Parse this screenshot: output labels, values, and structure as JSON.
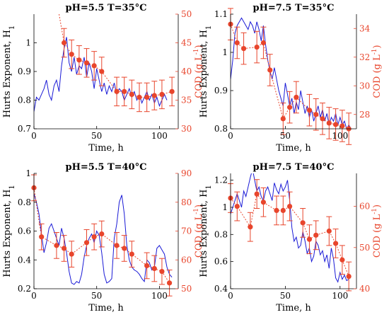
{
  "colors": {
    "hurst": "#1a1ad6",
    "cod": "#e8452c",
    "axis": "#000000"
  },
  "chart_data": [
    {
      "type": "line",
      "title": "pH=5.5 T=35°C",
      "xlabel": "Time, h",
      "ylabel": "Hurts Exponent, H",
      "ylabel_sub": "1",
      "y2label": "COD (g L",
      "y2label_sup": "-1",
      "y2label_end": ")",
      "xlim": [
        0,
        115
      ],
      "xticks": [
        "0",
        "50",
        "100"
      ],
      "xtick_vals": [
        0,
        50,
        100
      ],
      "ylim": [
        0.7,
        1.1
      ],
      "yticks": [
        "0.7",
        "0.8",
        "0.9",
        "1"
      ],
      "ytick_vals": [
        0.7,
        0.8,
        0.9,
        1.0
      ],
      "y2lim": [
        30,
        50
      ],
      "y2ticks": [
        "30",
        "35",
        "40",
        "45",
        "50"
      ],
      "y2tick_vals": [
        30,
        35,
        40,
        45,
        50
      ],
      "series": [
        {
          "axis": "left",
          "style": "line",
          "x": [
            0,
            2,
            4,
            6,
            8,
            10,
            12,
            14,
            16,
            18,
            20,
            22,
            24,
            26,
            28,
            30,
            32,
            34,
            36,
            38,
            40,
            42,
            44,
            46,
            48,
            50,
            52,
            54,
            56,
            58,
            60,
            62,
            64,
            66,
            68,
            70,
            72,
            74,
            76,
            78,
            80,
            82,
            84,
            86,
            88,
            90,
            92,
            94,
            96,
            98,
            100,
            102,
            104,
            106
          ],
          "y": [
            0.76,
            0.81,
            0.8,
            0.82,
            0.84,
            0.87,
            0.82,
            0.8,
            0.85,
            0.87,
            0.83,
            0.92,
            0.98,
            1.02,
            0.93,
            0.9,
            0.95,
            0.89,
            0.92,
            0.91,
            0.95,
            0.88,
            0.93,
            0.9,
            0.84,
            0.91,
            0.87,
            0.83,
            0.86,
            0.82,
            0.85,
            0.83,
            0.86,
            0.82,
            0.84,
            0.83,
            0.8,
            0.82,
            0.84,
            0.81,
            0.83,
            0.8,
            0.82,
            0.79,
            0.81,
            0.83,
            0.8,
            0.82,
            0.79,
            0.81,
            0.78,
            0.8,
            0.82,
            0.8
          ]
        },
        {
          "axis": "right",
          "style": "points",
          "x": [
            24,
            30,
            36,
            42,
            48,
            54,
            66,
            72,
            78,
            84,
            90,
            96,
            102,
            110
          ],
          "y": [
            45,
            43,
            42,
            41.5,
            41,
            40,
            36.5,
            36.5,
            36,
            35.5,
            35.5,
            35.8,
            36,
            36.5
          ],
          "err": [
            2.5,
            2.5,
            2.5,
            2.5,
            2.5,
            2.5,
            2.5,
            2.5,
            2.5,
            2.5,
            2.5,
            2.5,
            2.5,
            2.5
          ],
          "lead_x": [
            20,
            24
          ],
          "lead_y": [
            50,
            45
          ]
        }
      ]
    },
    {
      "type": "line",
      "title": "pH=7.5 T=35°C",
      "xlabel": "Time, h",
      "ylabel": "Hurts Exponent, H",
      "ylabel_sub": "1",
      "y2label": "COD (g L",
      "y2label_sup": "-1",
      "y2label_end": ")",
      "xlim": [
        0,
        115
      ],
      "xticks": [
        "0",
        "50",
        "100"
      ],
      "xtick_vals": [
        0,
        50,
        100
      ],
      "ylim": [
        0.8,
        1.1
      ],
      "yticks": [
        "0.8",
        "0.9",
        "1",
        "1.1"
      ],
      "ytick_vals": [
        0.8,
        0.9,
        1.0,
        1.1
      ],
      "y2lim": [
        27,
        35
      ],
      "y2ticks": [
        "28",
        "30",
        "32",
        "34"
      ],
      "y2tick_vals": [
        28,
        30,
        32,
        34
      ],
      "series": [
        {
          "axis": "left",
          "style": "line",
          "x": [
            0,
            2,
            4,
            6,
            8,
            10,
            12,
            14,
            16,
            18,
            20,
            22,
            24,
            26,
            28,
            30,
            32,
            34,
            36,
            38,
            40,
            42,
            44,
            46,
            48,
            50,
            52,
            54,
            56,
            58,
            60,
            62,
            64,
            66,
            68,
            70,
            72,
            74,
            76,
            78,
            80,
            82,
            84,
            86,
            88,
            90,
            92,
            94,
            96,
            98,
            100,
            102,
            104,
            106,
            108,
            110
          ],
          "y": [
            0.93,
            0.98,
            1.05,
            1.07,
            1.08,
            1.09,
            1.08,
            1.07,
            1.06,
            1.08,
            1.07,
            1.05,
            1.08,
            1.06,
            1.03,
            1.07,
            1.02,
            0.98,
            0.95,
            0.93,
            0.96,
            0.93,
            0.9,
            0.88,
            0.86,
            0.92,
            0.89,
            0.86,
            0.88,
            0.84,
            0.87,
            0.85,
            0.9,
            0.87,
            0.84,
            0.86,
            0.83,
            0.85,
            0.82,
            0.84,
            0.86,
            0.83,
            0.85,
            0.82,
            0.84,
            0.81,
            0.83,
            0.82,
            0.84,
            0.81,
            0.83,
            0.81,
            0.82,
            0.8,
            0.81,
            0.8
          ]
        },
        {
          "axis": "right",
          "style": "points",
          "x": [
            0,
            6,
            12,
            24,
            30,
            36,
            48,
            54,
            60,
            72,
            78,
            84,
            90,
            96,
            102,
            108
          ],
          "y": [
            34.3,
            33.0,
            32.6,
            32.7,
            33.0,
            31.1,
            27.7,
            28.5,
            29.2,
            28.3,
            28.0,
            27.7,
            27.4,
            27.3,
            27.2,
            27.0
          ],
          "err": [
            1.1,
            1.1,
            1.1,
            1.1,
            1.1,
            1.1,
            1.1,
            1.1,
            1.1,
            1.1,
            1.1,
            1.1,
            1.1,
            1.1,
            1.1,
            1.1
          ]
        }
      ]
    },
    {
      "type": "line",
      "title": "pH=5.5 T=40°C",
      "xlabel": "Time, h",
      "ylabel": "Hurts Exponent, H",
      "ylabel_sub": "1",
      "y2label": "COD (g L",
      "y2label_sup": "-1",
      "y2label_end": ")",
      "xlim": [
        0,
        115
      ],
      "xticks": [
        "0",
        "50",
        "100"
      ],
      "xtick_vals": [
        0,
        50,
        100
      ],
      "ylim": [
        0.2,
        1.0
      ],
      "yticks": [
        "0.2",
        "0.4",
        "0.6",
        "0.8",
        "1"
      ],
      "ytick_vals": [
        0.2,
        0.4,
        0.6,
        0.8,
        1.0
      ],
      "y2lim": [
        50,
        90
      ],
      "y2ticks": [
        "50",
        "60",
        "70",
        "80",
        "90"
      ],
      "y2tick_vals": [
        50,
        60,
        70,
        80,
        90
      ],
      "series": [
        {
          "axis": "left",
          "style": "line",
          "x": [
            0,
            2,
            4,
            6,
            8,
            10,
            12,
            14,
            16,
            18,
            20,
            22,
            24,
            26,
            28,
            30,
            32,
            34,
            36,
            38,
            40,
            42,
            44,
            46,
            48,
            50,
            52,
            54,
            56,
            58,
            60,
            62,
            64,
            66,
            68,
            70,
            72,
            74,
            76,
            78,
            80,
            82,
            84,
            86,
            88,
            90,
            92,
            94,
            96,
            98,
            100,
            102,
            104,
            106,
            108,
            110
          ],
          "y": [
            0.86,
            0.8,
            0.72,
            0.58,
            0.45,
            0.52,
            0.62,
            0.65,
            0.6,
            0.55,
            0.5,
            0.62,
            0.55,
            0.45,
            0.32,
            0.24,
            0.23,
            0.25,
            0.24,
            0.3,
            0.42,
            0.5,
            0.55,
            0.58,
            0.52,
            0.6,
            0.57,
            0.45,
            0.3,
            0.24,
            0.25,
            0.27,
            0.55,
            0.65,
            0.8,
            0.85,
            0.72,
            0.5,
            0.4,
            0.35,
            0.33,
            0.32,
            0.3,
            0.27,
            0.25,
            0.4,
            0.38,
            0.33,
            0.35,
            0.48,
            0.5,
            0.47,
            0.44,
            0.35,
            0.3,
            0.28
          ]
        },
        {
          "axis": "right",
          "style": "points",
          "x": [
            0,
            6,
            18,
            24,
            30,
            42,
            48,
            54,
            66,
            72,
            78,
            90,
            96,
            102,
            108
          ],
          "y": [
            85,
            68,
            65,
            64,
            62,
            66,
            68,
            69,
            65,
            64,
            62,
            58,
            57,
            56,
            52
          ],
          "err": [
            4.5,
            4.5,
            4.5,
            4.5,
            4.5,
            4.5,
            4.5,
            4.5,
            4.5,
            4.5,
            4.5,
            4.5,
            4.5,
            4.5,
            4.5
          ]
        }
      ]
    },
    {
      "type": "line",
      "title": "pH=7.5 T=40°C",
      "xlabel": "Time, h",
      "ylabel": "Hurts Exponent, H",
      "ylabel_sub": "1",
      "y2label": "COD (g L",
      "y2label_sup": "-1",
      "y2label_end": ")",
      "xlim": [
        0,
        115
      ],
      "xticks": [
        "0",
        "50",
        "100"
      ],
      "xtick_vals": [
        0,
        50,
        100
      ],
      "ylim": [
        0.4,
        1.25
      ],
      "yticks": [
        "0.4",
        "0.6",
        "0.8",
        "1",
        "1.2"
      ],
      "ytick_vals": [
        0.4,
        0.6,
        0.8,
        1.0,
        1.2
      ],
      "y2lim": [
        40,
        68
      ],
      "y2ticks": [
        "40",
        "50",
        "60"
      ],
      "y2tick_vals": [
        40,
        50,
        60
      ],
      "series": [
        {
          "axis": "left",
          "style": "line",
          "x": [
            0,
            2,
            4,
            6,
            8,
            10,
            12,
            14,
            16,
            18,
            20,
            22,
            24,
            26,
            28,
            30,
            32,
            34,
            36,
            38,
            40,
            42,
            44,
            46,
            48,
            50,
            52,
            54,
            56,
            58,
            60,
            62,
            64,
            66,
            68,
            70,
            72,
            74,
            76,
            78,
            80,
            82,
            84,
            86,
            88,
            90,
            92,
            94,
            96,
            98,
            100,
            102,
            104,
            106,
            108
          ],
          "y": [
            0.95,
            1.0,
            1.05,
            1.1,
            1.05,
            1.0,
            1.12,
            1.08,
            1.15,
            1.22,
            1.28,
            1.2,
            1.12,
            1.15,
            1.08,
            1.05,
            1.12,
            1.15,
            1.1,
            1.05,
            1.18,
            1.13,
            1.1,
            1.17,
            1.12,
            1.15,
            1.2,
            1.05,
            0.85,
            0.75,
            0.78,
            0.7,
            0.72,
            0.82,
            0.75,
            0.66,
            0.7,
            0.6,
            0.64,
            0.75,
            0.72,
            0.65,
            0.68,
            0.6,
            0.65,
            0.55,
            0.7,
            0.62,
            0.48,
            0.45,
            0.52,
            0.47,
            0.5,
            0.46,
            0.47
          ]
        },
        {
          "axis": "right",
          "style": "points",
          "x": [
            0,
            6,
            18,
            24,
            30,
            42,
            48,
            54,
            66,
            72,
            78,
            90,
            96,
            102,
            108
          ],
          "y": [
            62,
            60,
            55,
            63,
            61,
            59,
            59,
            60,
            56,
            52,
            53,
            54,
            51,
            47,
            43
          ],
          "err": [
            3.5,
            3.5,
            3.5,
            3.5,
            3.5,
            3.5,
            3.5,
            3.5,
            3.5,
            3.5,
            3.5,
            3.5,
            3.5,
            3.5,
            3.5
          ]
        }
      ]
    }
  ]
}
